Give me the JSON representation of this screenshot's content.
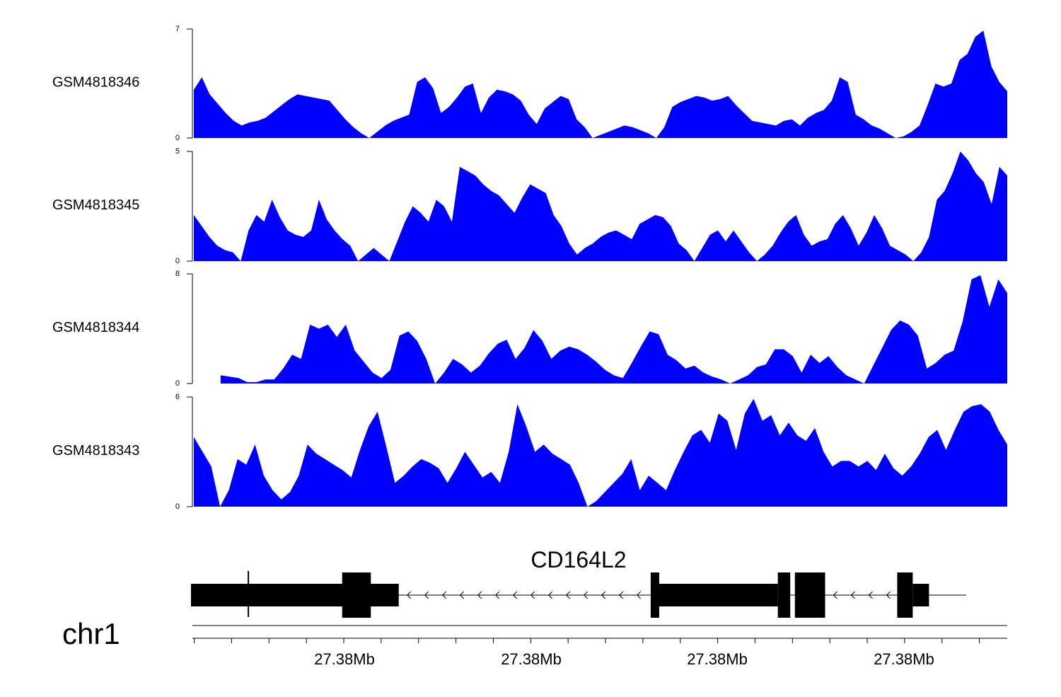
{
  "chart_data": {
    "type": "area",
    "colors": {
      "fill": "#0000ff",
      "gene": "#000000",
      "axis": "#000000"
    },
    "x_axis": {
      "tick_labels": [
        "27.38Mb",
        "27.38Mb",
        "27.38Mb",
        "27.38Mb"
      ],
      "minor_ticks": 22,
      "position": "bottom"
    },
    "chromosome": "chr1",
    "tracks": [
      {
        "name": "GSM4818346",
        "ylim": [
          0,
          7
        ],
        "ytick_labels": [
          "0",
          "7"
        ],
        "values": [
          3.1,
          3.9,
          2.8,
          2.2,
          1.6,
          1.1,
          0.8,
          1.0,
          1.1,
          1.3,
          1.7,
          2.1,
          2.5,
          2.8,
          2.7,
          2.6,
          2.5,
          2.4,
          1.8,
          1.2,
          0.7,
          0.3,
          0.0,
          0.4,
          0.8,
          1.1,
          1.3,
          1.5,
          3.6,
          3.9,
          3.2,
          1.6,
          2.0,
          2.6,
          3.3,
          3.5,
          1.6,
          2.6,
          3.1,
          3.0,
          2.8,
          2.4,
          1.5,
          0.9,
          1.9,
          2.3,
          2.7,
          2.5,
          1.2,
          0.7,
          0.0,
          0.2,
          0.4,
          0.6,
          0.8,
          0.7,
          0.5,
          0.3,
          0.0,
          0.7,
          2.0,
          2.3,
          2.5,
          2.7,
          2.6,
          2.4,
          2.5,
          2.7,
          2.1,
          1.6,
          1.1,
          1.0,
          0.9,
          0.8,
          1.1,
          1.2,
          0.8,
          1.3,
          1.6,
          1.8,
          2.4,
          3.9,
          3.6,
          1.5,
          1.2,
          0.8,
          0.6,
          0.3,
          0.0,
          0.1,
          0.4,
          0.8,
          2.1,
          3.5,
          3.3,
          3.5,
          5.0,
          5.4,
          6.5,
          6.9,
          4.6,
          3.6,
          3.0
        ]
      },
      {
        "name": "GSM4818345",
        "ylim": [
          0,
          5
        ],
        "ytick_labels": [
          "0",
          "5"
        ],
        "values": [
          2.1,
          1.6,
          1.1,
          0.7,
          0.5,
          0.4,
          0.0,
          1.4,
          2.1,
          1.8,
          2.8,
          2.0,
          1.4,
          1.2,
          1.1,
          1.4,
          2.8,
          1.9,
          1.4,
          1.0,
          0.7,
          0.0,
          0.3,
          0.6,
          0.3,
          0.0,
          0.9,
          1.8,
          2.5,
          2.2,
          1.8,
          2.8,
          2.5,
          1.8,
          4.3,
          4.1,
          3.9,
          3.5,
          3.2,
          3.0,
          2.6,
          2.2,
          2.9,
          3.5,
          3.3,
          3.1,
          2.1,
          1.6,
          0.8,
          0.3,
          0.6,
          0.8,
          1.1,
          1.3,
          1.4,
          1.2,
          1.0,
          1.7,
          1.9,
          2.1,
          2.0,
          1.6,
          0.8,
          0.5,
          0.0,
          0.6,
          1.2,
          1.4,
          0.9,
          1.4,
          0.9,
          0.4,
          0.0,
          0.3,
          0.7,
          1.3,
          1.8,
          2.1,
          1.2,
          0.7,
          0.9,
          1.0,
          1.7,
          2.1,
          1.5,
          0.7,
          1.3,
          2.1,
          1.5,
          0.7,
          0.5,
          0.3,
          0.0,
          0.4,
          1.1,
          2.8,
          3.2,
          4.0,
          5.0,
          4.6,
          4.0,
          3.6,
          2.6,
          4.3,
          3.9
        ]
      },
      {
        "name": "GSM4818344",
        "ylim": [
          0,
          8
        ],
        "ytick_labels": [
          "0",
          "8"
        ],
        "values": [
          null,
          null,
          null,
          0.6,
          0.5,
          0.4,
          0.1,
          0.1,
          0.3,
          0.3,
          1.1,
          2.1,
          1.8,
          4.3,
          4.0,
          4.3,
          3.4,
          4.3,
          2.4,
          1.6,
          0.8,
          0.4,
          1.0,
          3.5,
          3.8,
          3.1,
          1.8,
          0.0,
          0.8,
          1.8,
          1.4,
          0.8,
          1.3,
          2.2,
          2.9,
          3.2,
          1.8,
          2.6,
          3.9,
          3.1,
          1.8,
          2.4,
          2.7,
          2.5,
          2.1,
          1.6,
          1.0,
          0.6,
          0.4,
          1.5,
          2.7,
          3.8,
          3.6,
          2.1,
          1.7,
          1.1,
          1.3,
          0.8,
          0.5,
          0.3,
          0.0,
          0.3,
          0.6,
          1.2,
          1.4,
          2.5,
          2.5,
          2.0,
          0.8,
          2.1,
          1.5,
          2.0,
          1.2,
          0.6,
          0.3,
          0.0,
          1.3,
          2.6,
          3.9,
          4.6,
          4.3,
          3.5,
          1.1,
          1.5,
          2.1,
          2.4,
          4.5,
          7.6,
          7.9,
          5.6,
          7.6,
          6.6
        ]
      },
      {
        "name": "GSM4818343",
        "ylim": [
          0,
          6
        ],
        "ytick_labels": [
          "0",
          "6"
        ],
        "values": [
          3.8,
          3.0,
          2.2,
          0.0,
          0.9,
          2.6,
          2.3,
          3.4,
          1.7,
          0.9,
          0.4,
          0.8,
          1.7,
          3.4,
          2.9,
          2.6,
          2.3,
          2.0,
          1.6,
          3.1,
          4.4,
          5.2,
          3.3,
          1.3,
          1.7,
          2.2,
          2.6,
          2.4,
          2.1,
          1.3,
          2.1,
          3.0,
          2.3,
          1.6,
          1.9,
          1.3,
          3.0,
          5.6,
          4.4,
          3.0,
          3.4,
          2.9,
          2.6,
          2.3,
          1.3,
          0.0,
          0.3,
          0.8,
          1.3,
          1.8,
          2.6,
          0.9,
          1.7,
          1.3,
          0.9,
          2.0,
          3.0,
          3.9,
          4.2,
          3.5,
          5.1,
          4.7,
          3.1,
          5.1,
          5.9,
          4.7,
          5.0,
          3.9,
          4.6,
          3.9,
          3.6,
          4.3,
          3.0,
          2.2,
          2.5,
          2.5,
          2.2,
          2.5,
          2.0,
          2.9,
          2.1,
          1.7,
          2.2,
          2.9,
          3.8,
          4.2,
          3.1,
          4.2,
          5.2,
          5.5,
          5.6,
          5.2,
          4.2,
          3.4
        ]
      }
    ],
    "gene": {
      "name": "CD164L2",
      "strand": "-",
      "exons": [
        {
          "start": 0.0,
          "end": 0.268,
          "thick": false
        },
        {
          "start": 0.195,
          "end": 0.232,
          "thick": true
        },
        {
          "start": 0.593,
          "end": 0.604,
          "thick": true
        },
        {
          "start": 0.604,
          "end": 0.757,
          "thick": false
        },
        {
          "start": 0.757,
          "end": 0.773,
          "thick": true
        },
        {
          "start": 0.779,
          "end": 0.818,
          "thick": true
        },
        {
          "start": 0.911,
          "end": 0.931,
          "thick": true
        },
        {
          "start": 0.931,
          "end": 0.952,
          "thick": false
        }
      ],
      "tss": 0.074
    }
  }
}
